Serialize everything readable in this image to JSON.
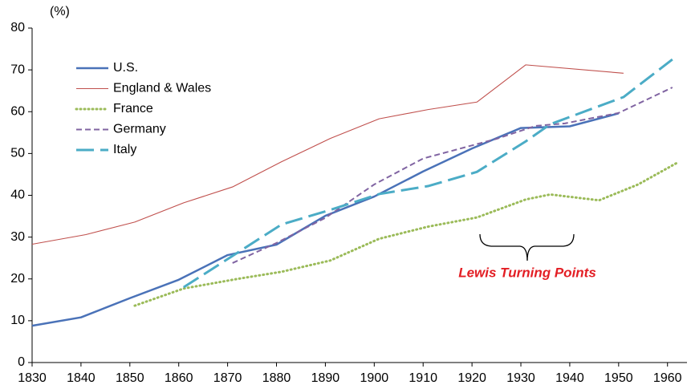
{
  "chart_data": {
    "type": "line",
    "y_label": "(%)",
    "annotation": "Lewis Turning Points",
    "xlim": [
      1830,
      1963
    ],
    "xticks": [
      1830,
      1840,
      1850,
      1860,
      1870,
      1880,
      1890,
      1900,
      1910,
      1920,
      1930,
      1940,
      1950,
      1960
    ],
    "ylim": [
      0,
      80
    ],
    "yticks": [
      0,
      10,
      20,
      30,
      40,
      50,
      60,
      70,
      80
    ],
    "grid": false,
    "legend": "upper left",
    "series": [
      {
        "name": "U.S.",
        "color": "#4a72b8",
        "style": "solid",
        "x": [
          1830,
          1840,
          1850,
          1860,
          1870,
          1880,
          1890,
          1900,
          1910,
          1920,
          1930,
          1940,
          1950
        ],
        "values": [
          8.8,
          10.8,
          15.4,
          19.8,
          25.7,
          28.2,
          35.1,
          39.7,
          45.7,
          51.2,
          56.1,
          56.5,
          59.6
        ]
      },
      {
        "name": "England & Wales",
        "color": "#c0504d",
        "style": "thin",
        "x": [
          1830,
          1841,
          1851,
          1861,
          1871,
          1881,
          1891,
          1901,
          1911,
          1921,
          1931,
          1951
        ],
        "values": [
          28.3,
          30.6,
          33.6,
          38.2,
          42.0,
          48.0,
          53.6,
          58.3,
          60.5,
          62.3,
          71.2,
          69.2
        ]
      },
      {
        "name": "France",
        "color": "#9bbb59",
        "style": "dotted",
        "x": [
          1851,
          1861,
          1872,
          1881,
          1891,
          1901,
          1911,
          1921,
          1931,
          1936,
          1946,
          1954,
          1962
        ],
        "values": [
          13.6,
          17.7,
          20.0,
          21.7,
          24.4,
          29.6,
          32.5,
          34.7,
          39.0,
          40.2,
          38.8,
          42.6,
          47.8
        ]
      },
      {
        "name": "Germany",
        "color": "#8064a2",
        "style": "dashed",
        "x": [
          1871,
          1880,
          1890,
          1900,
          1910,
          1925,
          1933,
          1939,
          1950,
          1961
        ],
        "values": [
          23.8,
          28.6,
          34.6,
          42.6,
          48.8,
          53.5,
          56.6,
          57.2,
          59.7,
          65.8
        ]
      },
      {
        "name": "Italy",
        "color": "#4bacc6",
        "style": "longdash",
        "x": [
          1861,
          1871,
          1881,
          1891,
          1901,
          1911,
          1921,
          1931,
          1936,
          1951,
          1961
        ],
        "values": [
          18.0,
          25.5,
          33.0,
          36.5,
          40.3,
          42.2,
          45.6,
          52.9,
          57.0,
          63.5,
          72.5
        ]
      }
    ]
  }
}
